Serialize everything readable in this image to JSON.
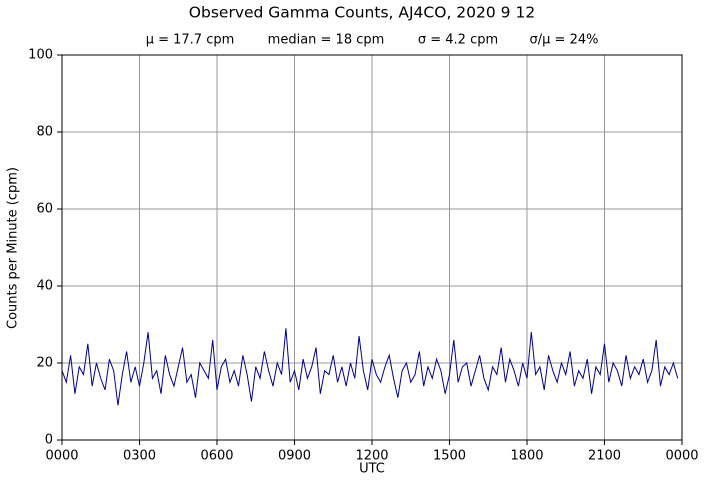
{
  "chart_data": {
    "type": "line",
    "title": "Observed Gamma Counts, AJ4CO, 2020 9 12",
    "stats": [
      "μ = 17.7 cpm",
      "median = 18 cpm",
      "σ = 4.2 cpm",
      "σ/μ = 24%"
    ],
    "xlabel": "UTC",
    "ylabel": "Counts per Minute (cpm)",
    "color": "#00008b",
    "grid": true,
    "xlim": [
      0,
      1440
    ],
    "xticks": [
      {
        "value": 0,
        "label": "0000"
      },
      {
        "value": 180,
        "label": "0300"
      },
      {
        "value": 360,
        "label": "0600"
      },
      {
        "value": 540,
        "label": "0900"
      },
      {
        "value": 720,
        "label": "1200"
      },
      {
        "value": 900,
        "label": "1500"
      },
      {
        "value": 1080,
        "label": "1800"
      },
      {
        "value": 1260,
        "label": "2100"
      },
      {
        "value": 1440,
        "label": "0000"
      }
    ],
    "ylim": [
      0,
      100
    ],
    "yticks": [
      0,
      20,
      40,
      60,
      80,
      100
    ],
    "x": [
      0,
      10,
      20,
      30,
      40,
      50,
      60,
      70,
      80,
      90,
      100,
      110,
      120,
      130,
      140,
      150,
      160,
      170,
      180,
      190,
      200,
      210,
      220,
      230,
      240,
      250,
      260,
      270,
      280,
      290,
      300,
      310,
      320,
      330,
      340,
      350,
      360,
      370,
      380,
      390,
      400,
      410,
      420,
      430,
      440,
      450,
      460,
      470,
      480,
      490,
      500,
      510,
      520,
      530,
      540,
      550,
      560,
      570,
      580,
      590,
      600,
      610,
      620,
      630,
      640,
      650,
      660,
      670,
      680,
      690,
      700,
      710,
      720,
      730,
      740,
      750,
      760,
      770,
      780,
      790,
      800,
      810,
      820,
      830,
      840,
      850,
      860,
      870,
      880,
      890,
      900,
      910,
      920,
      930,
      940,
      950,
      960,
      970,
      980,
      990,
      1000,
      1010,
      1020,
      1030,
      1040,
      1050,
      1060,
      1070,
      1080,
      1090,
      1100,
      1110,
      1120,
      1130,
      1140,
      1150,
      1160,
      1170,
      1180,
      1190,
      1200,
      1210,
      1220,
      1230,
      1240,
      1250,
      1260,
      1270,
      1280,
      1290,
      1300,
      1310,
      1320,
      1330,
      1340,
      1350,
      1360,
      1370,
      1380,
      1390,
      1400,
      1410,
      1420,
      1430
    ],
    "values": [
      18,
      15,
      22,
      12,
      19,
      17,
      25,
      14,
      20,
      16,
      13,
      21,
      18,
      9,
      17,
      23,
      15,
      19,
      14,
      20,
      28,
      16,
      18,
      12,
      22,
      17,
      14,
      19,
      24,
      15,
      17,
      11,
      20,
      18,
      16,
      26,
      13,
      19,
      21,
      15,
      18,
      14,
      22,
      17,
      10,
      19,
      16,
      23,
      18,
      14,
      20,
      17,
      29,
      15,
      18,
      13,
      21,
      16,
      19,
      24,
      12,
      18,
      17,
      22,
      15,
      19,
      14,
      20,
      16,
      27,
      18,
      13,
      21,
      17,
      15,
      19,
      22,
      16,
      11,
      18,
      20,
      15,
      17,
      23,
      14,
      19,
      16,
      21,
      18,
      12,
      17,
      26,
      15,
      19,
      20,
      14,
      18,
      22,
      16,
      13,
      19,
      17,
      24,
      15,
      21,
      18,
      14,
      20,
      16,
      28,
      17,
      19,
      13,
      22,
      18,
      15,
      20,
      17,
      23,
      14,
      18,
      16,
      21,
      12,
      19,
      17,
      25,
      15,
      20,
      18,
      14,
      22,
      16,
      19,
      17,
      21,
      15,
      18,
      26,
      14,
      19,
      17,
      20,
      16
    ]
  }
}
